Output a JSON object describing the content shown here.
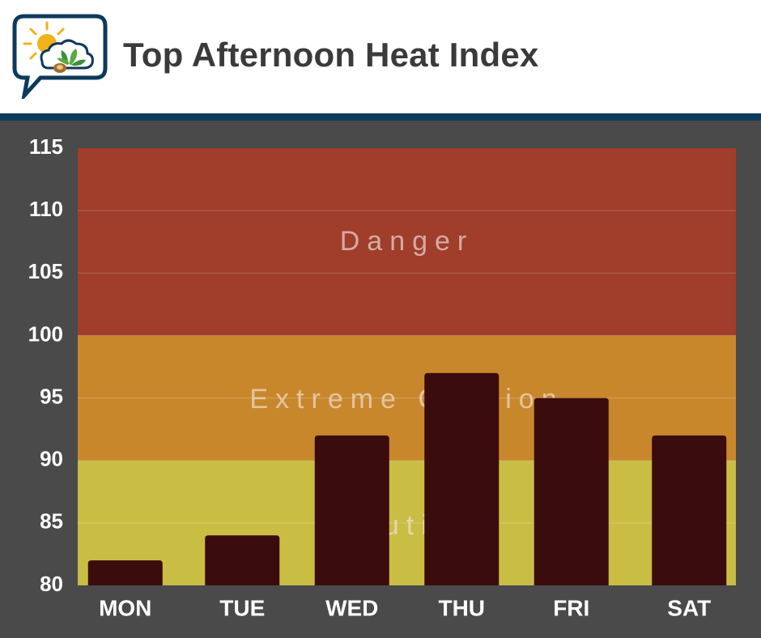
{
  "header": {
    "title": "Top Afternoon Heat Index"
  },
  "chart_data": {
    "type": "bar",
    "title": "Top Afternoon Heat Index",
    "xlabel": "",
    "ylabel": "",
    "categories": [
      "MON",
      "TUE",
      "WED",
      "THU",
      "FRI",
      "SAT"
    ],
    "values": [
      82,
      84,
      92,
      97,
      95,
      92
    ],
    "ylim": [
      80,
      115
    ],
    "yticks": [
      80,
      85,
      90,
      95,
      100,
      105,
      110,
      115
    ],
    "grid": true,
    "bands": [
      {
        "label": "Caution",
        "from": 80,
        "to": 90,
        "color": "#c9bd44"
      },
      {
        "label": "Extreme Caution",
        "from": 90,
        "to": 100,
        "color": "#c9872c"
      },
      {
        "label": "Danger",
        "from": 100,
        "to": 115,
        "color": "#a03d2b"
      }
    ],
    "bar_color": "#3a0c0e"
  },
  "colors": {
    "background": "#4a4a4a",
    "header_rule": "#0c3a5b",
    "title_text": "#3a3a3a",
    "axis_text": "#ffffff",
    "band_label_text": "#f0e6e0"
  },
  "icons": {
    "logo": "sun-cloud-plant-speech-bubble-icon"
  }
}
